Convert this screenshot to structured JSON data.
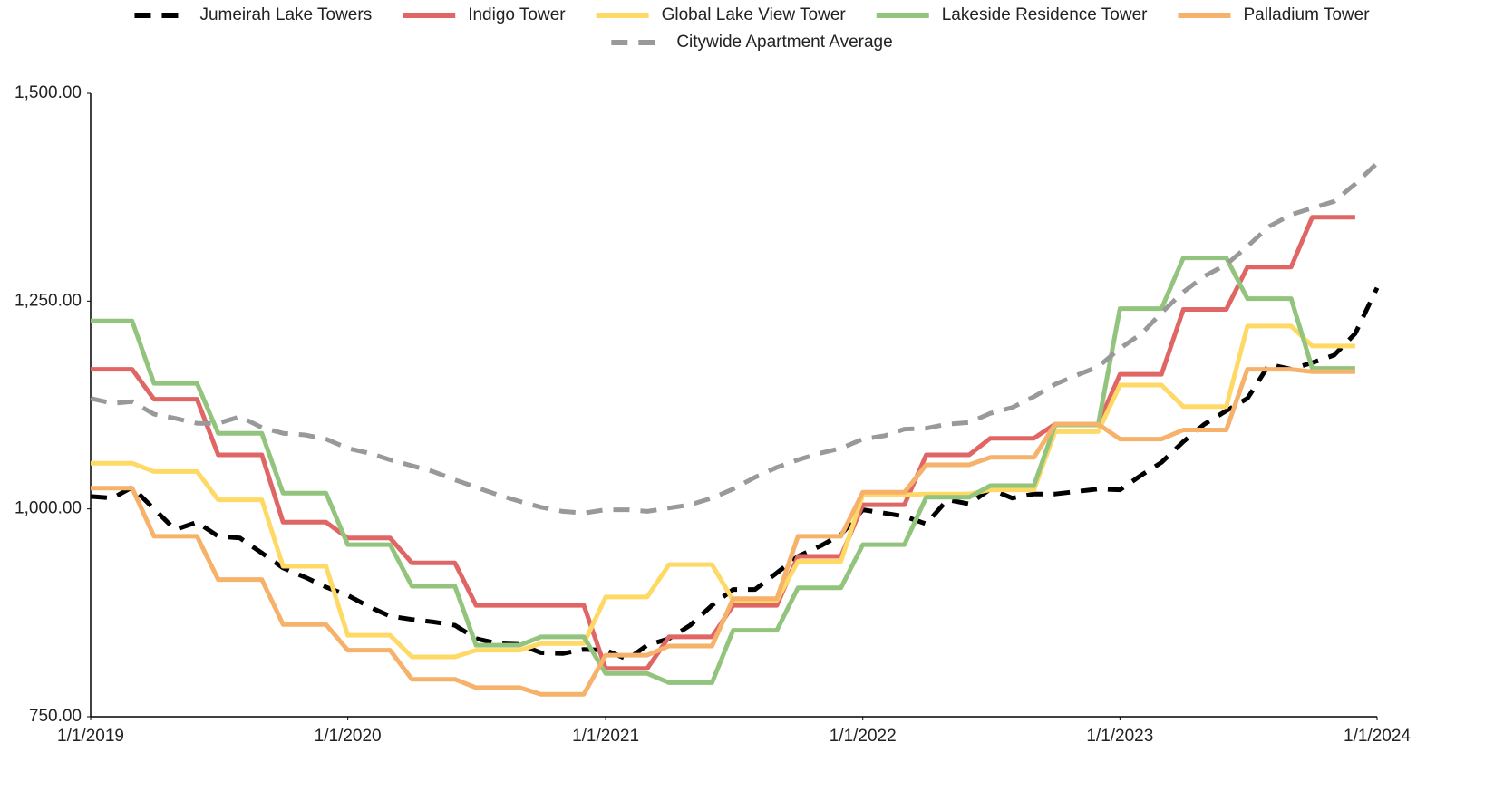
{
  "chart_data": {
    "type": "line",
    "x": [
      "1/1/2019",
      "2/1/2019",
      "3/1/2019",
      "4/1/2019",
      "5/1/2019",
      "6/1/2019",
      "7/1/2019",
      "8/1/2019",
      "9/1/2019",
      "10/1/2019",
      "11/1/2019",
      "12/1/2019",
      "1/1/2020",
      "2/1/2020",
      "3/1/2020",
      "4/1/2020",
      "5/1/2020",
      "6/1/2020",
      "7/1/2020",
      "8/1/2020",
      "9/1/2020",
      "10/1/2020",
      "11/1/2020",
      "12/1/2020",
      "1/1/2021",
      "2/1/2021",
      "3/1/2021",
      "4/1/2021",
      "5/1/2021",
      "6/1/2021",
      "7/1/2021",
      "8/1/2021",
      "9/1/2021",
      "10/1/2021",
      "11/1/2021",
      "12/1/2021",
      "1/1/2022",
      "2/1/2022",
      "3/1/2022",
      "4/1/2022",
      "5/1/2022",
      "6/1/2022",
      "7/1/2022",
      "8/1/2022",
      "9/1/2022",
      "10/1/2022",
      "11/1/2022",
      "12/1/2022",
      "1/1/2023",
      "2/1/2023",
      "3/1/2023",
      "4/1/2023",
      "5/1/2023",
      "6/1/2023",
      "7/1/2023",
      "8/1/2023",
      "9/1/2023",
      "10/1/2023",
      "11/1/2023",
      "12/1/2023",
      "1/1/2024"
    ],
    "xlim": [
      "1/1/2019",
      "1/1/2024"
    ],
    "xticks": [
      "1/1/2019",
      "1/1/2020",
      "1/1/2021",
      "1/1/2022",
      "1/1/2023",
      "1/1/2024"
    ],
    "ylim": [
      750,
      1500
    ],
    "yticks": [
      {
        "value": 750,
        "label": "750.00"
      },
      {
        "value": 1000,
        "label": "1,000.00"
      },
      {
        "value": 1250,
        "label": "1,250.00"
      },
      {
        "value": 1500,
        "label": "1,500.00"
      }
    ],
    "grid": false,
    "legend": "top",
    "series": [
      {
        "name": "Jumeirah Lake Towers",
        "color": "#000000",
        "dashed": true,
        "values": [
          1015,
          1013,
          1026,
          1000,
          975,
          984,
          967,
          965,
          947,
          929,
          918,
          906,
          896,
          882,
          871,
          867,
          864,
          860,
          844,
          838,
          837,
          827,
          826,
          831,
          830,
          819,
          836,
          844,
          860,
          884,
          903,
          903,
          923,
          943,
          955,
          969,
          999,
          995,
          991,
          982,
          1011,
          1006,
          1024,
          1013,
          1018,
          1018,
          1021,
          1024,
          1023,
          1041,
          1056,
          1081,
          1102,
          1118,
          1133,
          1174,
          1168,
          1176,
          1185,
          1211,
          1266
        ]
      },
      {
        "name": "Indigo Tower",
        "color": "#e06666",
        "dashed": false,
        "values": [
          1168,
          1168,
          1168,
          1132,
          1132,
          1132,
          1065,
          1065,
          1065,
          984,
          984,
          984,
          965,
          965,
          965,
          935,
          935,
          935,
          884,
          884,
          884,
          884,
          884,
          884,
          808,
          808,
          808,
          846,
          846,
          846,
          884,
          884,
          884,
          943,
          943,
          943,
          1005,
          1005,
          1005,
          1065,
          1065,
          1065,
          1085,
          1085,
          1085,
          1102,
          1102,
          1102,
          1162,
          1162,
          1162,
          1240,
          1240,
          1240,
          1291,
          1291,
          1291,
          1351,
          1351,
          1351,
          null
        ]
      },
      {
        "name": "Global Lake View Tower",
        "color": "#ffd966",
        "dashed": false,
        "values": [
          1055,
          1055,
          1055,
          1045,
          1045,
          1045,
          1011,
          1011,
          1011,
          931,
          931,
          931,
          848,
          848,
          848,
          822,
          822,
          822,
          830,
          830,
          830,
          838,
          838,
          838,
          894,
          894,
          894,
          933,
          933,
          933,
          890,
          890,
          890,
          937,
          937,
          937,
          1017,
          1017,
          1017,
          1018,
          1018,
          1018,
          1023,
          1023,
          1023,
          1093,
          1093,
          1093,
          1149,
          1149,
          1149,
          1123,
          1123,
          1123,
          1220,
          1220,
          1220,
          1196,
          1196,
          1196,
          null
        ]
      },
      {
        "name": "Lakeside Residence Tower",
        "color": "#93c47d",
        "dashed": false,
        "values": [
          1226,
          1226,
          1226,
          1151,
          1151,
          1151,
          1091,
          1091,
          1091,
          1019,
          1019,
          1019,
          957,
          957,
          957,
          907,
          907,
          907,
          836,
          836,
          836,
          846,
          846,
          846,
          802,
          802,
          802,
          791,
          791,
          791,
          854,
          854,
          854,
          905,
          905,
          905,
          957,
          957,
          957,
          1014,
          1014,
          1014,
          1028,
          1028,
          1028,
          1101,
          1101,
          1101,
          1241,
          1241,
          1241,
          1302,
          1302,
          1302,
          1253,
          1253,
          1253,
          1169,
          1169,
          1169,
          null
        ]
      },
      {
        "name": "Palladium Tower",
        "color": "#f6b26b",
        "dashed": false,
        "values": [
          1025,
          1025,
          1025,
          967,
          967,
          967,
          915,
          915,
          915,
          861,
          861,
          861,
          830,
          830,
          830,
          795,
          795,
          795,
          785,
          785,
          785,
          777,
          777,
          777,
          824,
          824,
          824,
          835,
          835,
          835,
          892,
          892,
          892,
          967,
          967,
          967,
          1020,
          1020,
          1020,
          1053,
          1053,
          1053,
          1062,
          1062,
          1062,
          1102,
          1102,
          1102,
          1084,
          1084,
          1084,
          1095,
          1095,
          1095,
          1168,
          1168,
          1168,
          1165,
          1165,
          1165,
          null
        ]
      },
      {
        "name": "Citywide Apartment Average",
        "color": "#999999",
        "dashed": true,
        "values": [
          1133,
          1127,
          1129,
          1114,
          1109,
          1103,
          1103,
          1111,
          1098,
          1091,
          1089,
          1084,
          1073,
          1067,
          1059,
          1052,
          1045,
          1035,
          1026,
          1017,
          1009,
          1002,
          997,
          995,
          999,
          999,
          997,
          1001,
          1005,
          1013,
          1024,
          1038,
          1050,
          1059,
          1067,
          1073,
          1084,
          1088,
          1096,
          1097,
          1102,
          1104,
          1115,
          1122,
          1135,
          1150,
          1161,
          1171,
          1193,
          1211,
          1236,
          1261,
          1280,
          1294,
          1316,
          1340,
          1354,
          1362,
          1370,
          1391,
          1416
        ]
      }
    ]
  }
}
